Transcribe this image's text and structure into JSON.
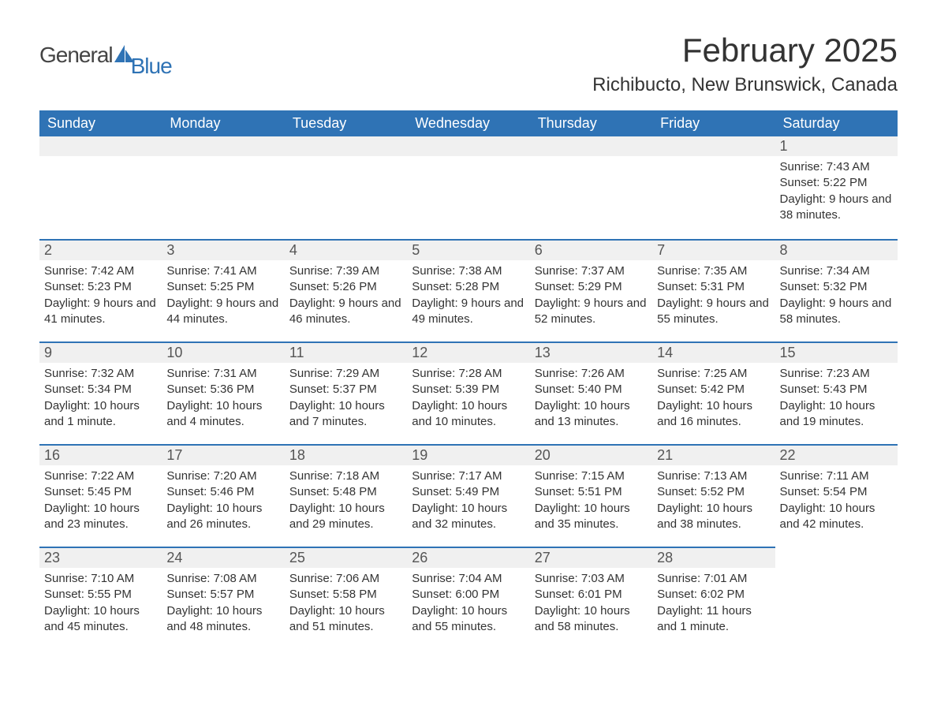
{
  "logo": {
    "word1": "General",
    "word2": "Blue",
    "sail_color": "#2f73b5"
  },
  "title": "February 2025",
  "location": "Richibucto, New Brunswick, Canada",
  "day_headers": [
    "Sunday",
    "Monday",
    "Tuesday",
    "Wednesday",
    "Thursday",
    "Friday",
    "Saturday"
  ],
  "colors": {
    "header_bg": "#2f73b5",
    "header_fg": "#ffffff",
    "daynum_bg": "#f0f0f0",
    "daynum_border": "#2f73b5",
    "text": "#333333",
    "background": "#ffffff"
  },
  "typography": {
    "title_fontsize": 42,
    "location_fontsize": 24,
    "header_fontsize": 18,
    "daynum_fontsize": 18,
    "body_fontsize": 15
  },
  "weeks": [
    [
      null,
      null,
      null,
      null,
      null,
      null,
      {
        "n": "1",
        "sunrise": "7:43 AM",
        "sunset": "5:22 PM",
        "daylight": "9 hours and 38 minutes."
      }
    ],
    [
      {
        "n": "2",
        "sunrise": "7:42 AM",
        "sunset": "5:23 PM",
        "daylight": "9 hours and 41 minutes."
      },
      {
        "n": "3",
        "sunrise": "7:41 AM",
        "sunset": "5:25 PM",
        "daylight": "9 hours and 44 minutes."
      },
      {
        "n": "4",
        "sunrise": "7:39 AM",
        "sunset": "5:26 PM",
        "daylight": "9 hours and 46 minutes."
      },
      {
        "n": "5",
        "sunrise": "7:38 AM",
        "sunset": "5:28 PM",
        "daylight": "9 hours and 49 minutes."
      },
      {
        "n": "6",
        "sunrise": "7:37 AM",
        "sunset": "5:29 PM",
        "daylight": "9 hours and 52 minutes."
      },
      {
        "n": "7",
        "sunrise": "7:35 AM",
        "sunset": "5:31 PM",
        "daylight": "9 hours and 55 minutes."
      },
      {
        "n": "8",
        "sunrise": "7:34 AM",
        "sunset": "5:32 PM",
        "daylight": "9 hours and 58 minutes."
      }
    ],
    [
      {
        "n": "9",
        "sunrise": "7:32 AM",
        "sunset": "5:34 PM",
        "daylight": "10 hours and 1 minute."
      },
      {
        "n": "10",
        "sunrise": "7:31 AM",
        "sunset": "5:36 PM",
        "daylight": "10 hours and 4 minutes."
      },
      {
        "n": "11",
        "sunrise": "7:29 AM",
        "sunset": "5:37 PM",
        "daylight": "10 hours and 7 minutes."
      },
      {
        "n": "12",
        "sunrise": "7:28 AM",
        "sunset": "5:39 PM",
        "daylight": "10 hours and 10 minutes."
      },
      {
        "n": "13",
        "sunrise": "7:26 AM",
        "sunset": "5:40 PM",
        "daylight": "10 hours and 13 minutes."
      },
      {
        "n": "14",
        "sunrise": "7:25 AM",
        "sunset": "5:42 PM",
        "daylight": "10 hours and 16 minutes."
      },
      {
        "n": "15",
        "sunrise": "7:23 AM",
        "sunset": "5:43 PM",
        "daylight": "10 hours and 19 minutes."
      }
    ],
    [
      {
        "n": "16",
        "sunrise": "7:22 AM",
        "sunset": "5:45 PM",
        "daylight": "10 hours and 23 minutes."
      },
      {
        "n": "17",
        "sunrise": "7:20 AM",
        "sunset": "5:46 PM",
        "daylight": "10 hours and 26 minutes."
      },
      {
        "n": "18",
        "sunrise": "7:18 AM",
        "sunset": "5:48 PM",
        "daylight": "10 hours and 29 minutes."
      },
      {
        "n": "19",
        "sunrise": "7:17 AM",
        "sunset": "5:49 PM",
        "daylight": "10 hours and 32 minutes."
      },
      {
        "n": "20",
        "sunrise": "7:15 AM",
        "sunset": "5:51 PM",
        "daylight": "10 hours and 35 minutes."
      },
      {
        "n": "21",
        "sunrise": "7:13 AM",
        "sunset": "5:52 PM",
        "daylight": "10 hours and 38 minutes."
      },
      {
        "n": "22",
        "sunrise": "7:11 AM",
        "sunset": "5:54 PM",
        "daylight": "10 hours and 42 minutes."
      }
    ],
    [
      {
        "n": "23",
        "sunrise": "7:10 AM",
        "sunset": "5:55 PM",
        "daylight": "10 hours and 45 minutes."
      },
      {
        "n": "24",
        "sunrise": "7:08 AM",
        "sunset": "5:57 PM",
        "daylight": "10 hours and 48 minutes."
      },
      {
        "n": "25",
        "sunrise": "7:06 AM",
        "sunset": "5:58 PM",
        "daylight": "10 hours and 51 minutes."
      },
      {
        "n": "26",
        "sunrise": "7:04 AM",
        "sunset": "6:00 PM",
        "daylight": "10 hours and 55 minutes."
      },
      {
        "n": "27",
        "sunrise": "7:03 AM",
        "sunset": "6:01 PM",
        "daylight": "10 hours and 58 minutes."
      },
      {
        "n": "28",
        "sunrise": "7:01 AM",
        "sunset": "6:02 PM",
        "daylight": "11 hours and 1 minute."
      },
      null
    ]
  ],
  "labels": {
    "sunrise": "Sunrise: ",
    "sunset": "Sunset: ",
    "daylight": "Daylight: "
  }
}
